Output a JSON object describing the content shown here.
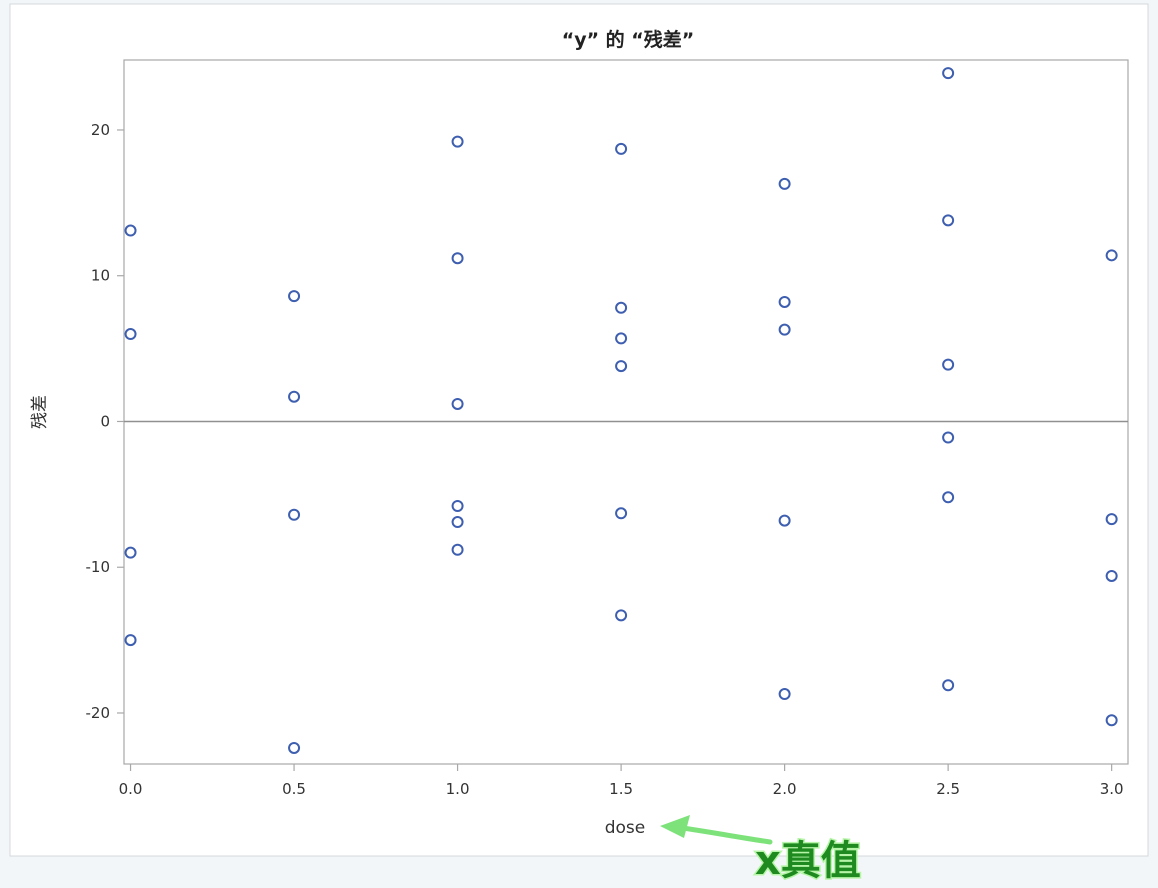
{
  "chart_data": {
    "type": "scatter",
    "title": "“y” 的 “残差”",
    "xlabel": "dose",
    "ylabel": "残差",
    "xlim": [
      -0.02,
      3.05
    ],
    "ylim": [
      -23.5,
      24.8
    ],
    "x_ticks": [
      0.0,
      0.5,
      1.0,
      1.5,
      2.0,
      2.5,
      3.0
    ],
    "x_tick_labels": [
      "0.0",
      "0.5",
      "1.0",
      "1.5",
      "2.0",
      "2.5",
      "3.0"
    ],
    "y_ticks": [
      -20,
      -10,
      0,
      10,
      20
    ],
    "y_tick_labels": [
      "-20",
      "-10",
      "0",
      "10",
      "20"
    ],
    "reference_line_y": 0,
    "grid": false,
    "legend": "none",
    "marker": "open-circle",
    "marker_color": "#3e5fb0",
    "points": [
      {
        "x": 0.0,
        "y": 13.1
      },
      {
        "x": 0.0,
        "y": 6.0
      },
      {
        "x": 0.0,
        "y": -9.0
      },
      {
        "x": 0.0,
        "y": -15.0
      },
      {
        "x": 0.5,
        "y": 8.6
      },
      {
        "x": 0.5,
        "y": 1.7
      },
      {
        "x": 0.5,
        "y": -6.4
      },
      {
        "x": 0.5,
        "y": -22.4
      },
      {
        "x": 1.0,
        "y": 19.2
      },
      {
        "x": 1.0,
        "y": 11.2
      },
      {
        "x": 1.0,
        "y": 1.2
      },
      {
        "x": 1.0,
        "y": -5.8
      },
      {
        "x": 1.0,
        "y": -6.9
      },
      {
        "x": 1.0,
        "y": -8.8
      },
      {
        "x": 1.5,
        "y": 18.7
      },
      {
        "x": 1.5,
        "y": 7.8
      },
      {
        "x": 1.5,
        "y": 5.7
      },
      {
        "x": 1.5,
        "y": 3.8
      },
      {
        "x": 1.5,
        "y": -6.3
      },
      {
        "x": 1.5,
        "y": -13.3
      },
      {
        "x": 2.0,
        "y": 16.3
      },
      {
        "x": 2.0,
        "y": 8.2
      },
      {
        "x": 2.0,
        "y": 6.3
      },
      {
        "x": 2.0,
        "y": -6.8
      },
      {
        "x": 2.0,
        "y": -18.7
      },
      {
        "x": 2.5,
        "y": 23.9
      },
      {
        "x": 2.5,
        "y": 13.8
      },
      {
        "x": 2.5,
        "y": 3.9
      },
      {
        "x": 2.5,
        "y": -1.1
      },
      {
        "x": 2.5,
        "y": -5.2
      },
      {
        "x": 2.5,
        "y": -18.1
      },
      {
        "x": 3.0,
        "y": 11.4
      },
      {
        "x": 3.0,
        "y": -6.7
      },
      {
        "x": 3.0,
        "y": -10.6
      },
      {
        "x": 3.0,
        "y": -20.5
      }
    ],
    "annotation": {
      "text": "x真值",
      "arrow_color": "#7de27a",
      "text_color": "#1f8a1f"
    }
  }
}
